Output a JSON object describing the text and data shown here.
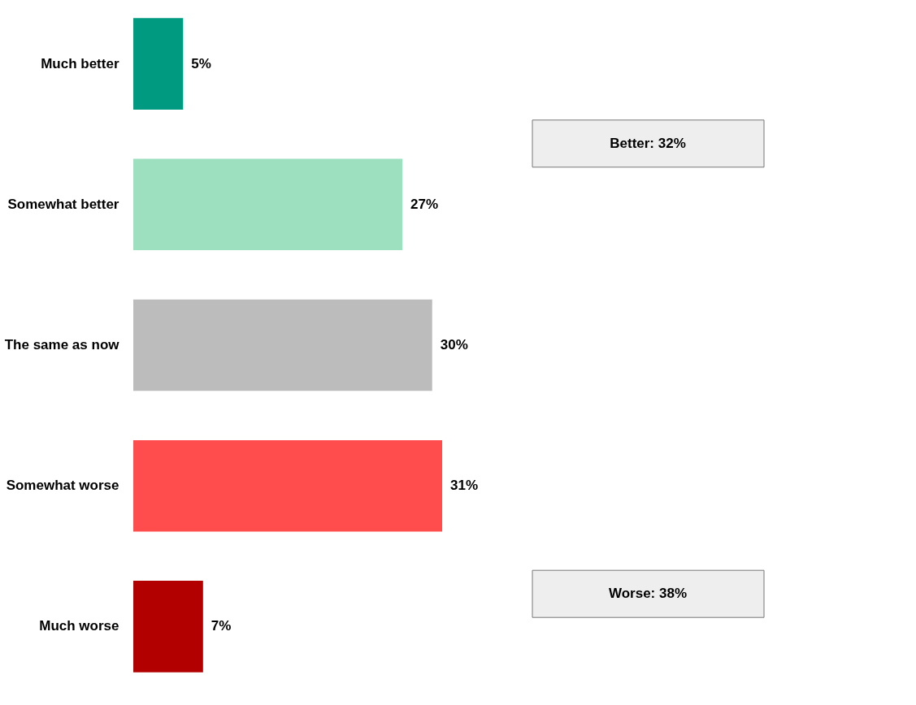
{
  "chart_data": {
    "type": "bar",
    "orientation": "horizontal",
    "categories": [
      "Much better",
      "Somewhat better",
      "The same as now",
      "Somewhat worse",
      "Much worse"
    ],
    "values": [
      5,
      27,
      30,
      31,
      7
    ],
    "colors": [
      "#009a80",
      "#9de0c0",
      "#bcbcbc",
      "#ff4c4c",
      "#b20000"
    ],
    "value_labels": [
      "5%",
      "27%",
      "30%",
      "31%",
      "7%"
    ],
    "annotations": [
      "Better:  32%",
      "Worse:  38%"
    ],
    "grid": false,
    "legend": false
  }
}
